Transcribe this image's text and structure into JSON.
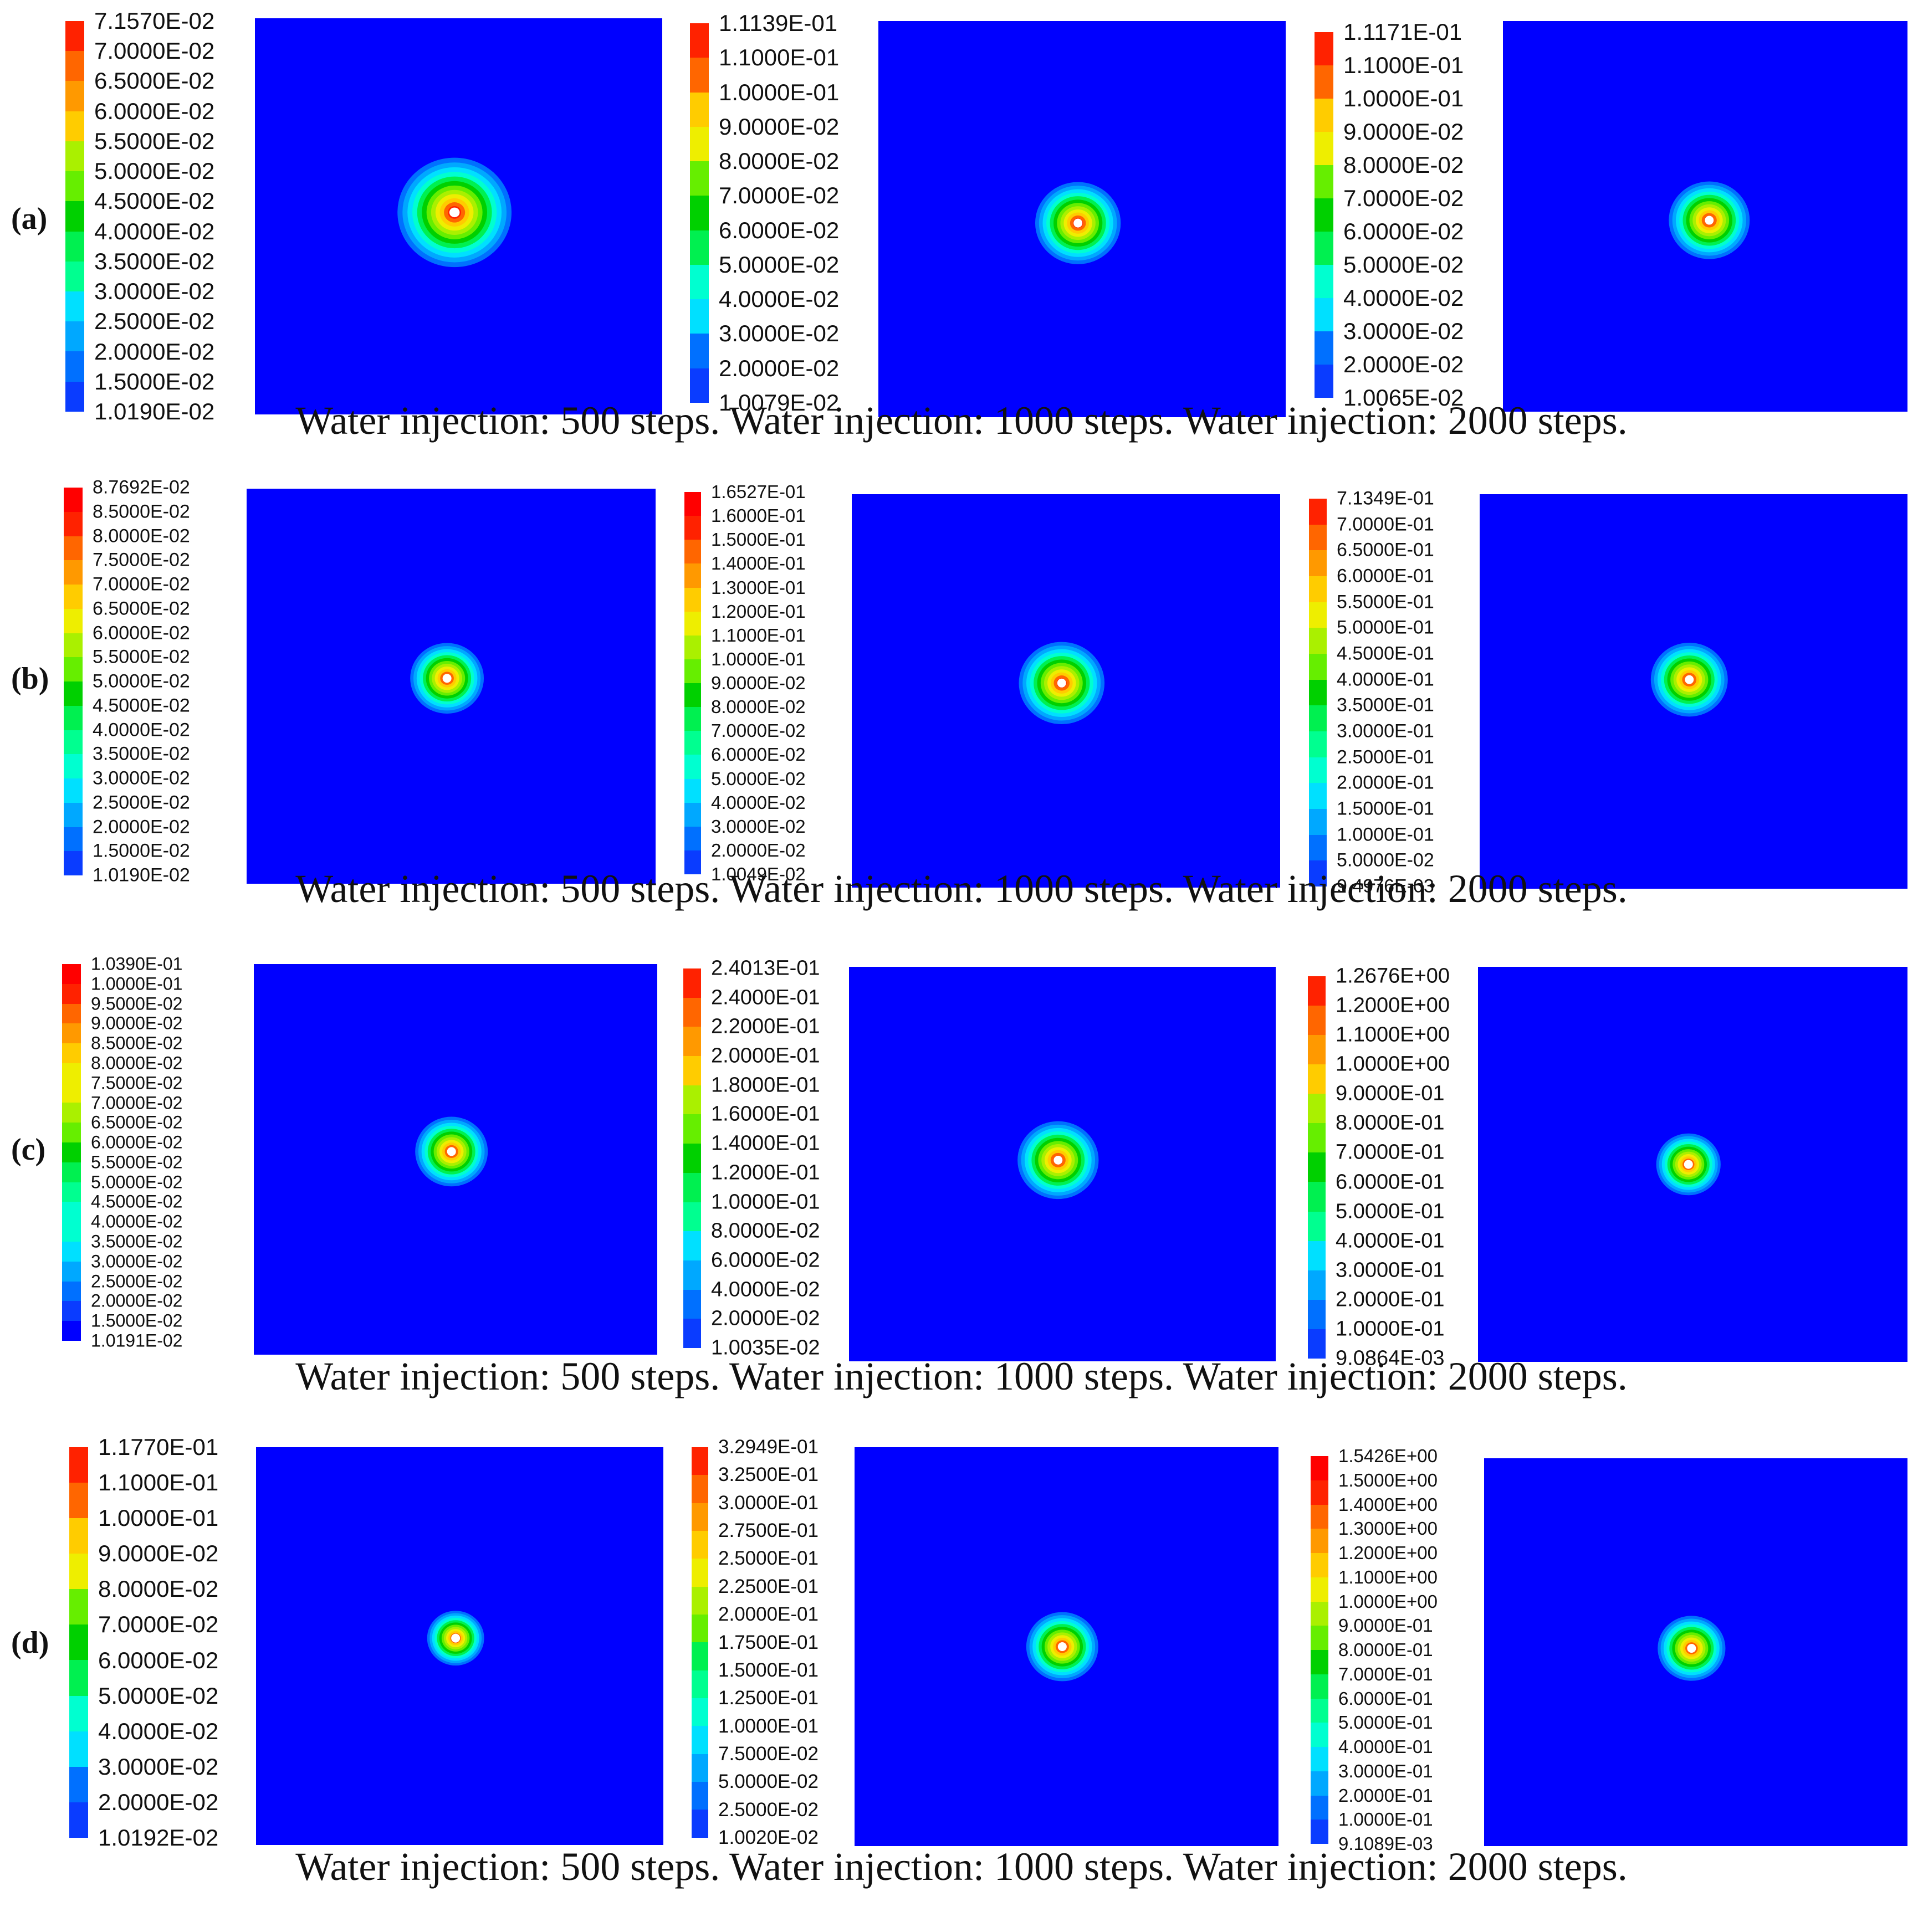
{
  "colormap": [
    "#0000ff",
    "#0a3cff",
    "#0070ff",
    "#00a8ff",
    "#00e0ff",
    "#00ffd0",
    "#00ff90",
    "#00f050",
    "#00d000",
    "#66ee00",
    "#aaf000",
    "#eeee00",
    "#ffcc00",
    "#ff9900",
    "#ff6600",
    "#ff2200",
    "#ff0000"
  ],
  "colors": {
    "field": "#0000ff",
    "core": "#ffffff"
  },
  "rows": [
    {
      "label": "(a)",
      "caption": "Water injection: 500 steps. Water injection: 1000 steps. Water injection: 2000 steps.",
      "panels": [
        {
          "legend": [
            "7.1570E-02",
            "7.0000E-02",
            "6.5000E-02",
            "6.0000E-02",
            "5.5000E-02",
            "5.0000E-02",
            "4.5000E-02",
            "4.0000E-02",
            "3.5000E-02",
            "3.0000E-02",
            "2.5000E-02",
            "2.0000E-02",
            "1.5000E-02",
            "1.0190E-02"
          ],
          "plume_extent": 0.28
        },
        {
          "legend": [
            "1.1139E-01",
            "1.1000E-01",
            "1.0000E-01",
            "9.0000E-02",
            "8.0000E-02",
            "7.0000E-02",
            "6.0000E-02",
            "5.0000E-02",
            "4.0000E-02",
            "3.0000E-02",
            "2.0000E-02",
            "1.0079E-02"
          ],
          "plume_extent": 0.21
        },
        {
          "legend": [
            "1.1171E-01",
            "1.1000E-01",
            "1.0000E-01",
            "9.0000E-02",
            "8.0000E-02",
            "7.0000E-02",
            "6.0000E-02",
            "5.0000E-02",
            "4.0000E-02",
            "3.0000E-02",
            "2.0000E-02",
            "1.0065E-02"
          ],
          "plume_extent": 0.2
        }
      ]
    },
    {
      "label": "(b)",
      "caption": "Water injection: 500 steps. Water injection: 1000 steps. Water injection: 2000 steps.",
      "panels": [
        {
          "legend": [
            "8.7692E-02",
            "8.5000E-02",
            "8.0000E-02",
            "7.5000E-02",
            "7.0000E-02",
            "6.5000E-02",
            "6.0000E-02",
            "5.5000E-02",
            "5.0000E-02",
            "4.5000E-02",
            "4.0000E-02",
            "3.5000E-02",
            "3.0000E-02",
            "2.5000E-02",
            "2.0000E-02",
            "1.5000E-02",
            "1.0190E-02"
          ],
          "plume_extent": 0.18
        },
        {
          "legend": [
            "1.6527E-01",
            "1.6000E-01",
            "1.5000E-01",
            "1.4000E-01",
            "1.3000E-01",
            "1.2000E-01",
            "1.1000E-01",
            "1.0000E-01",
            "9.0000E-02",
            "8.0000E-02",
            "7.0000E-02",
            "6.0000E-02",
            "5.0000E-02",
            "4.0000E-02",
            "3.0000E-02",
            "2.0000E-02",
            "1.0049E-02"
          ],
          "plume_extent": 0.2
        },
        {
          "legend": [
            "7.1349E-01",
            "7.0000E-01",
            "6.5000E-01",
            "6.0000E-01",
            "5.5000E-01",
            "5.0000E-01",
            "4.5000E-01",
            "4.0000E-01",
            "3.5000E-01",
            "3.0000E-01",
            "2.5000E-01",
            "2.0000E-01",
            "1.5000E-01",
            "1.0000E-01",
            "5.0000E-02",
            "9.4976E-03"
          ],
          "plume_extent": 0.18
        }
      ]
    },
    {
      "label": "(c)",
      "caption": "Water injection: 500 steps. Water injection: 1000 steps. Water injection: 2000 steps.",
      "panels": [
        {
          "legend": [
            "1.0390E-01",
            "1.0000E-01",
            "9.5000E-02",
            "9.0000E-02",
            "8.5000E-02",
            "8.0000E-02",
            "7.5000E-02",
            "7.0000E-02",
            "6.5000E-02",
            "6.0000E-02",
            "5.5000E-02",
            "5.0000E-02",
            "4.5000E-02",
            "4.0000E-02",
            "3.5000E-02",
            "3.0000E-02",
            "2.5000E-02",
            "2.0000E-02",
            "1.5000E-02",
            "1.0191E-02"
          ],
          "plume_extent": 0.18
        },
        {
          "legend": [
            "2.4013E-01",
            "2.4000E-01",
            "2.2000E-01",
            "2.0000E-01",
            "1.8000E-01",
            "1.6000E-01",
            "1.4000E-01",
            "1.2000E-01",
            "1.0000E-01",
            "8.0000E-02",
            "6.0000E-02",
            "4.0000E-02",
            "2.0000E-02",
            "1.0035E-02"
          ],
          "plume_extent": 0.19
        },
        {
          "legend": [
            "1.2676E+00",
            "1.2000E+00",
            "1.1000E+00",
            "1.0000E+00",
            "9.0000E-01",
            "8.0000E-01",
            "7.0000E-01",
            "6.0000E-01",
            "5.0000E-01",
            "4.0000E-01",
            "3.0000E-01",
            "2.0000E-01",
            "1.0000E-01",
            "9.0864E-03"
          ],
          "plume_extent": 0.15
        }
      ]
    },
    {
      "label": "(d)",
      "caption": "Water injection: 500 steps. Water injection: 1000 steps. Water injection: 2000 steps.",
      "panels": [
        {
          "legend": [
            "1.1770E-01",
            "1.1000E-01",
            "1.0000E-01",
            "9.0000E-02",
            "8.0000E-02",
            "7.0000E-02",
            "6.0000E-02",
            "5.0000E-02",
            "4.0000E-02",
            "3.0000E-02",
            "2.0000E-02",
            "1.0192E-02"
          ],
          "plume_extent": 0.14
        },
        {
          "legend": [
            "3.2949E-01",
            "3.2500E-01",
            "3.0000E-01",
            "2.7500E-01",
            "2.5000E-01",
            "2.2500E-01",
            "2.0000E-01",
            "1.7500E-01",
            "1.5000E-01",
            "1.2500E-01",
            "1.0000E-01",
            "7.5000E-02",
            "5.0000E-02",
            "2.5000E-02",
            "1.0020E-02"
          ],
          "plume_extent": 0.17
        },
        {
          "legend": [
            "1.5426E+00",
            "1.5000E+00",
            "1.4000E+00",
            "1.3000E+00",
            "1.2000E+00",
            "1.1000E+00",
            "1.0000E+00",
            "9.0000E-01",
            "8.0000E-01",
            "7.0000E-01",
            "6.0000E-01",
            "5.0000E-01",
            "4.0000E-01",
            "3.0000E-01",
            "2.0000E-01",
            "1.0000E-01",
            "9.1089E-03"
          ],
          "plume_extent": 0.16
        }
      ]
    }
  ]
}
